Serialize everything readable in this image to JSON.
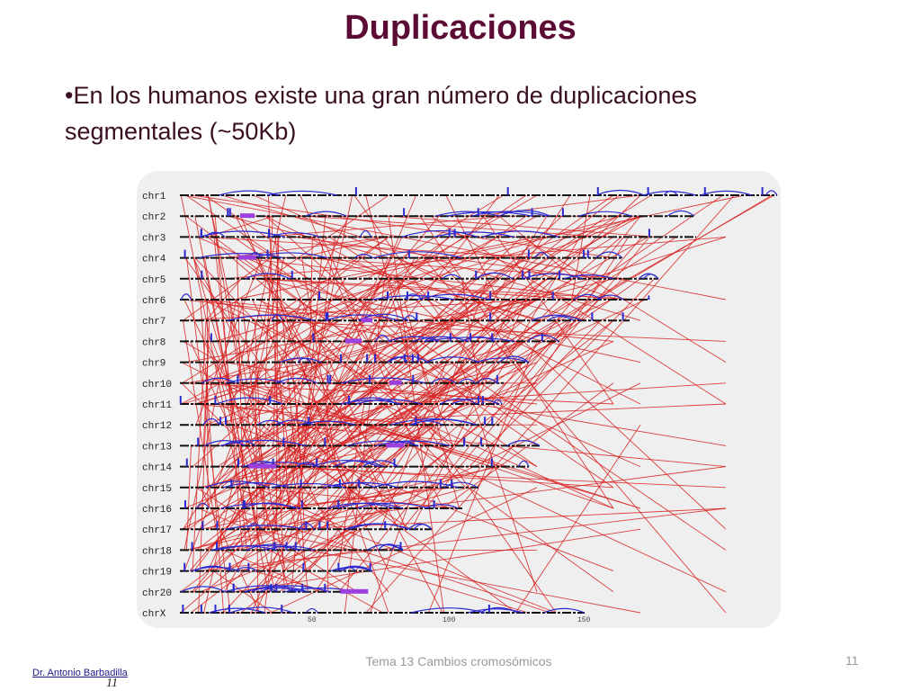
{
  "slide": {
    "title": "Duplicaciones",
    "bullet": "•En los humanos existe una gran número de duplicaciones segmentales (~50Kb)",
    "footer_center": "Tema 13 Cambios cromosómicos",
    "page_number": "11",
    "author": "Dr. Antonio Barbadilla",
    "author_number": "11"
  },
  "colors": {
    "title": "#5c0b35",
    "intra": "#2a2ad0",
    "inter": "#d81e1e",
    "marker": "#9b3fe0",
    "chromosome_line": "#111111"
  },
  "diagram": {
    "chromosomes": [
      "chr1",
      "chr2",
      "chr3",
      "chr4",
      "chr5",
      "chr6",
      "chr7",
      "chr8",
      "chr9",
      "chr10",
      "chr11",
      "chr12",
      "chr13",
      "chr14",
      "chr15",
      "chr16",
      "chr17",
      "chr18",
      "chr19",
      "chr20",
      "chrX"
    ],
    "scale_labels": [
      "50",
      "100",
      "150"
    ]
  }
}
